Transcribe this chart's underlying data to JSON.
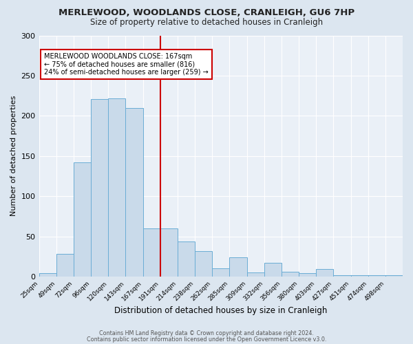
{
  "title": "MERLEWOOD, WOODLANDS CLOSE, CRANLEIGH, GU6 7HP",
  "subtitle": "Size of property relative to detached houses in Cranleigh",
  "xlabel": "Distribution of detached houses by size in Cranleigh",
  "ylabel": "Number of detached properties",
  "bar_labels": [
    "25sqm",
    "49sqm",
    "72sqm",
    "96sqm",
    "120sqm",
    "143sqm",
    "167sqm",
    "191sqm",
    "214sqm",
    "238sqm",
    "262sqm",
    "285sqm",
    "309sqm",
    "332sqm",
    "356sqm",
    "380sqm",
    "403sqm",
    "427sqm",
    "451sqm",
    "474sqm",
    "498sqm"
  ],
  "bar_values": [
    4,
    28,
    142,
    221,
    222,
    210,
    60,
    60,
    44,
    32,
    10,
    24,
    5,
    17,
    6,
    4,
    9,
    2,
    2,
    2,
    2
  ],
  "marker_index": 6,
  "marker_label": "MERLEWOOD WOODLANDS CLOSE: 167sqm",
  "line1": "← 75% of detached houses are smaller (816)",
  "line2": "24% of semi-detached houses are larger (259) →",
  "bar_color": "#c9daea",
  "bar_edge_color": "#6aadd5",
  "line_color": "#cc0000",
  "annotation_box_color": "#cc0000",
  "background_color": "#dce6f0",
  "plot_bg_color": "#eaf0f7",
  "grid_color": "#ffffff",
  "ylim": [
    0,
    300
  ],
  "yticks": [
    0,
    50,
    100,
    150,
    200,
    250,
    300
  ],
  "footer1": "Contains HM Land Registry data © Crown copyright and database right 2024.",
  "footer2": "Contains public sector information licensed under the Open Government Licence v3.0."
}
